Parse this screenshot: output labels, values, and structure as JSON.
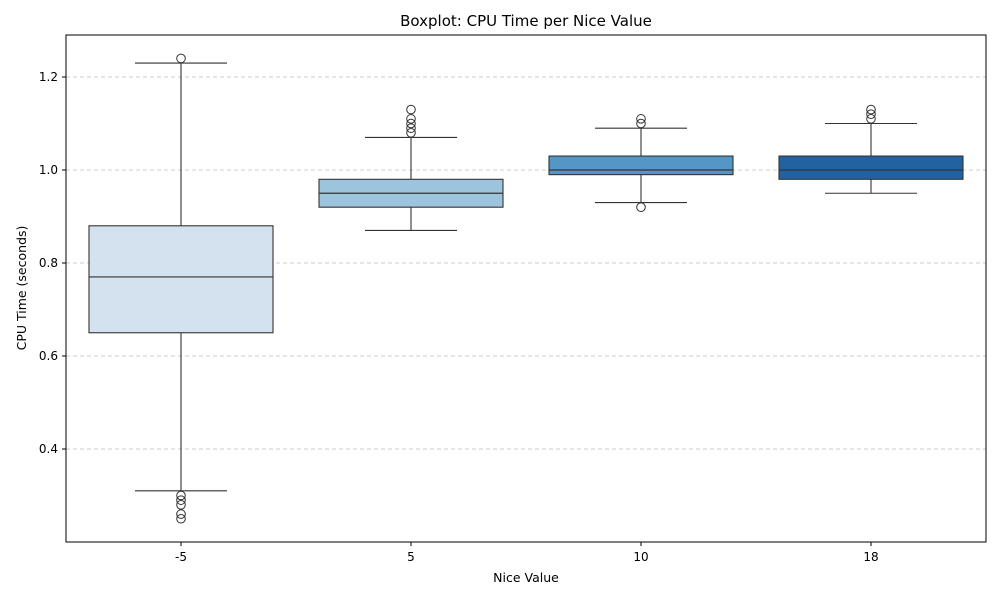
{
  "chart_data": {
    "type": "boxplot",
    "title": "Boxplot: CPU Time per Nice Value",
    "xlabel": "Nice Value",
    "ylabel": "CPU Time (seconds)",
    "ylim": [
      0.2,
      1.29
    ],
    "yticks": [
      0.4,
      0.6,
      0.8,
      1.0,
      1.2
    ],
    "ytick_labels": [
      "0.4",
      "0.6",
      "0.8",
      "1.0",
      "1.2"
    ],
    "grid": "horizontal-dashed",
    "categories": [
      "-5",
      "5",
      "10",
      "18"
    ],
    "boxes": [
      {
        "category": "-5",
        "whisker_low": 0.31,
        "q1": 0.65,
        "median": 0.77,
        "q3": 0.88,
        "whisker_high": 1.23,
        "outliers": [
          0.3,
          0.29,
          0.28,
          0.26,
          0.25,
          1.24
        ],
        "color": "#d4e2f0"
      },
      {
        "category": "5",
        "whisker_low": 0.87,
        "q1": 0.92,
        "median": 0.95,
        "q3": 0.98,
        "whisker_high": 1.07,
        "outliers": [
          1.08,
          1.09,
          1.1,
          1.11,
          1.13
        ],
        "color": "#9cc5dd"
      },
      {
        "category": "10",
        "whisker_low": 0.93,
        "q1": 0.99,
        "median": 1.0,
        "q3": 1.03,
        "whisker_high": 1.09,
        "outliers": [
          0.92,
          1.1,
          1.11
        ],
        "color": "#5497c6"
      },
      {
        "category": "18",
        "whisker_low": 0.95,
        "q1": 0.98,
        "median": 1.0,
        "q3": 1.03,
        "whisker_high": 1.1,
        "outliers": [
          1.11,
          1.12,
          1.13
        ],
        "color": "#2262a0"
      }
    ]
  }
}
